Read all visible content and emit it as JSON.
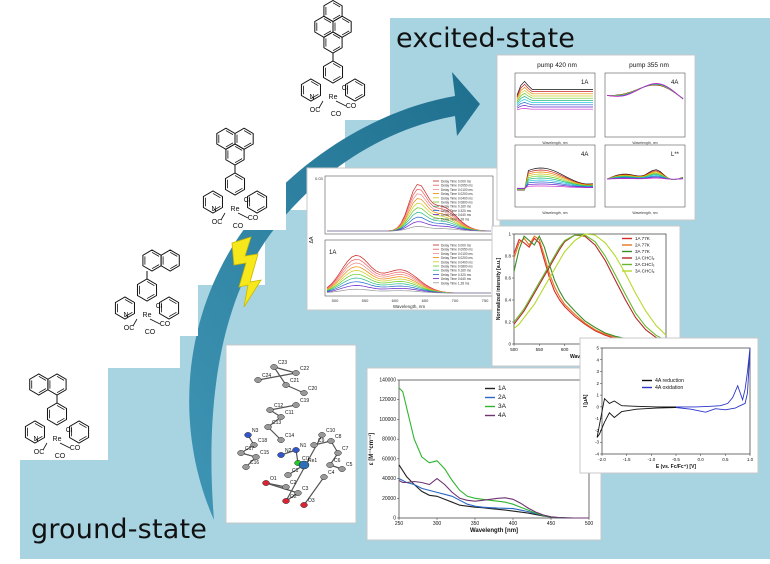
{
  "labels": {
    "excited_state": "excited-state",
    "ground_state": "ground-state"
  },
  "colors": {
    "step_background": "#a8d4e2",
    "arrow": "#2d7f9e",
    "lightning": "#f7e81c"
  },
  "structures": {
    "atoms": {
      "N": "N",
      "Re": "Re",
      "Cl": "Cl",
      "OC": "OC",
      "CO": "CO"
    }
  },
  "crystal": {
    "atom_labels": [
      "C24",
      "C22",
      "C23",
      "C21",
      "C20",
      "C19",
      "C12",
      "C11",
      "C13",
      "C14",
      "N3",
      "C18",
      "C17",
      "C15",
      "C16",
      "N2",
      "N1",
      "Cl1",
      "Re1",
      "C1",
      "C2",
      "O1",
      "C3",
      "O2",
      "C10",
      "C9",
      "C8",
      "C7",
      "C6",
      "C5",
      "C4",
      "O3"
    ]
  },
  "chart_ta": {
    "title_left": "pump 420 nm",
    "title_right": "pump 355 nm",
    "panel_labels": [
      "1A",
      "4A",
      "4A",
      "L**"
    ],
    "xlabel": "Wavelength, nm",
    "ylabel": "ΔA"
  },
  "chart_kinetics": {
    "top_ymax": "0.03",
    "panel_label": "1A",
    "ylabel": "ΔA",
    "xlabel": "Wavelength, nm",
    "x_ticks": [
      "500",
      "550",
      "600",
      "650",
      "700",
      "750"
    ],
    "legend_top": [
      "Delay Time 0.000 ms",
      "Delay Time 0.0050 ms",
      "Delay Time 0.0100 ms",
      "Delay Time 0.0200 ms",
      "Delay Time 0.0400 ms",
      "Delay Time 0.0800 ms",
      "Delay Time 0.160 ms",
      "Delay Time 0.320 ms",
      "Delay Time 0.640 ms",
      "Delay Time 1.28 ms"
    ],
    "legend_bottom": [
      "Delay Time 0.000 ms",
      "Delay Time 0.0050 ms",
      "Delay Time 0.0100 ms",
      "Delay Time 0.0200 ms",
      "Delay Time 0.0400 ms",
      "Delay Time 0.0800 ms",
      "Delay Time 0.160 ms",
      "Delay Time 0.320 ms",
      "Delay Time 0.640 ms",
      "Delay Time 1.28 ms"
    ]
  },
  "chart_data": [
    {
      "type": "line",
      "title": "",
      "xlabel": "Wavelength [nm]",
      "ylabel": "Normalized intensity [a.u.]",
      "xlim": [
        500,
        800
      ],
      "ylim": [
        0.0,
        1.0
      ],
      "x_ticks": [
        500,
        550,
        600,
        650,
        700,
        750,
        800
      ],
      "y_ticks": [
        0.0,
        0.2,
        0.4,
        0.6,
        0.8,
        1.0
      ],
      "legend_position": "top-right",
      "x": [
        500,
        510,
        520,
        530,
        540,
        550,
        560,
        570,
        580,
        590,
        600,
        620,
        640,
        660,
        680,
        700,
        720,
        740,
        760,
        780,
        800
      ],
      "series": [
        {
          "name": "1A 77K",
          "color": "#d62a2a",
          "values": [
            0.82,
            0.95,
            0.92,
            0.88,
            0.96,
            0.92,
            0.76,
            0.6,
            0.48,
            0.4,
            0.34,
            0.25,
            0.18,
            0.12,
            0.08,
            0.05,
            0.03,
            0.02,
            0.01,
            0.0,
            0.0
          ]
        },
        {
          "name": "2A 77K",
          "color": "#e8741e",
          "values": [
            0.78,
            0.92,
            0.96,
            0.9,
            0.98,
            0.95,
            0.8,
            0.64,
            0.52,
            0.43,
            0.36,
            0.27,
            0.19,
            0.13,
            0.09,
            0.06,
            0.04,
            0.02,
            0.01,
            0.0,
            0.0
          ]
        },
        {
          "name": "3A 77K",
          "color": "#3d8c2a",
          "values": [
            0.66,
            0.86,
            0.98,
            0.94,
            0.9,
            0.98,
            0.88,
            0.72,
            0.58,
            0.48,
            0.4,
            0.3,
            0.21,
            0.15,
            0.1,
            0.07,
            0.05,
            0.03,
            0.02,
            0.01,
            0.0
          ]
        },
        {
          "name": "1A CHCl₃",
          "color": "#b52828",
          "values": [
            0.18,
            0.24,
            0.3,
            0.38,
            0.46,
            0.54,
            0.62,
            0.7,
            0.78,
            0.86,
            0.93,
            0.99,
            0.98,
            0.9,
            0.76,
            0.58,
            0.4,
            0.24,
            0.13,
            0.06,
            0.02
          ]
        },
        {
          "name": "2A CHCl₃",
          "color": "#66b82e",
          "values": [
            0.2,
            0.26,
            0.32,
            0.4,
            0.48,
            0.56,
            0.64,
            0.72,
            0.8,
            0.88,
            0.94,
            0.99,
            0.99,
            0.93,
            0.8,
            0.63,
            0.45,
            0.28,
            0.16,
            0.08,
            0.03
          ]
        },
        {
          "name": "3A CHCl₃",
          "color": "#b6d92a",
          "values": [
            0.14,
            0.18,
            0.24,
            0.3,
            0.36,
            0.44,
            0.52,
            0.6,
            0.68,
            0.76,
            0.84,
            0.94,
            1.0,
            0.99,
            0.92,
            0.8,
            0.64,
            0.46,
            0.3,
            0.17,
            0.08
          ]
        }
      ]
    },
    {
      "type": "line",
      "title": "",
      "xlabel": "Wavelength [nm]",
      "ylabel": "ε [M⁻¹cm⁻¹]",
      "xlim": [
        250,
        500
      ],
      "ylim": [
        0,
        140000
      ],
      "x_ticks": [
        250,
        300,
        350,
        400,
        450,
        500
      ],
      "y_ticks": [
        0,
        20000,
        40000,
        60000,
        80000,
        100000,
        120000,
        140000
      ],
      "legend_position": "top-right",
      "x": [
        250,
        255,
        260,
        270,
        280,
        290,
        300,
        310,
        320,
        330,
        340,
        350,
        360,
        370,
        380,
        390,
        400,
        410,
        420,
        430,
        440,
        450,
        460,
        470,
        480,
        490,
        500
      ],
      "series": [
        {
          "name": "1A",
          "color": "#222222",
          "values": [
            54000,
            48000,
            42000,
            34000,
            27000,
            23000,
            22000,
            19000,
            16000,
            13000,
            12000,
            11000,
            10500,
            9500,
            8800,
            8000,
            7000,
            6000,
            5000,
            3500,
            2000,
            900,
            300,
            100,
            0,
            0,
            0
          ]
        },
        {
          "name": "2A",
          "color": "#2a67c4",
          "values": [
            40000,
            38000,
            36000,
            34000,
            30000,
            28000,
            26000,
            24000,
            22000,
            18000,
            14000,
            12000,
            11000,
            10500,
            10000,
            9800,
            9500,
            8000,
            6500,
            4500,
            2500,
            1000,
            300,
            100,
            0,
            0,
            0
          ]
        },
        {
          "name": "3A",
          "color": "#2fb52f",
          "values": [
            132000,
            128000,
            112000,
            80000,
            62000,
            56000,
            58000,
            50000,
            38000,
            28000,
            22000,
            20000,
            19000,
            18000,
            17000,
            16000,
            14000,
            11000,
            8000,
            5000,
            2500,
            1000,
            300,
            100,
            0,
            0,
            0
          ]
        },
        {
          "name": "4A",
          "color": "#6d3470",
          "values": [
            38000,
            36000,
            36000,
            37000,
            36000,
            34000,
            40000,
            34000,
            26000,
            20000,
            18000,
            17000,
            18000,
            19000,
            20000,
            20500,
            19000,
            15000,
            10000,
            6000,
            3000,
            1200,
            400,
            100,
            0,
            0,
            0
          ]
        }
      ]
    },
    {
      "type": "line",
      "title": "",
      "xlabel": "E (vs. Fc/Fc⁺) [V]",
      "ylabel": "I [μA]",
      "xlim": [
        -2.0,
        1.0
      ],
      "ylim": [
        -4,
        5
      ],
      "x_ticks": [
        "-2.0",
        "-1.5",
        "-1.0",
        "-0.5",
        "0.0",
        "0.5",
        "1.0"
      ],
      "y_ticks": [
        -4,
        -3,
        -2,
        -1,
        0,
        1,
        2,
        3,
        4,
        5
      ],
      "legend_position": "top-center",
      "series": [
        {
          "name": "4A reduction",
          "color": "#111111",
          "x": [
            -0.5,
            -0.9,
            -1.3,
            -1.6,
            -1.75,
            -1.85,
            -1.95,
            -2.05,
            -2.1,
            -2.05,
            -1.95,
            -1.85,
            -1.75,
            -1.6,
            -1.3,
            -0.9,
            -0.5
          ],
          "values": [
            -0.05,
            -0.1,
            -0.2,
            -0.4,
            -0.9,
            -0.5,
            -1.3,
            -2.3,
            -2.6,
            -1.5,
            0.7,
            0.3,
            0.5,
            0.1,
            0.05,
            0.0,
            0.0
          ]
        },
        {
          "name": "4A oxidation",
          "color": "#2b35c8",
          "x": [
            -0.5,
            -0.1,
            0.2,
            0.4,
            0.55,
            0.65,
            0.75,
            0.85,
            0.9,
            0.95,
            1.0,
            0.95,
            0.9,
            0.8,
            0.7,
            0.5,
            0.3,
            0.1,
            -0.2,
            -0.5
          ],
          "values": [
            0.0,
            0.0,
            0.05,
            0.1,
            0.3,
            0.8,
            1.8,
            0.6,
            1.5,
            3.0,
            5.0,
            1.2,
            0.3,
            0.1,
            -0.1,
            -0.25,
            -0.15,
            -0.45,
            -0.2,
            -0.05
          ]
        }
      ]
    }
  ]
}
